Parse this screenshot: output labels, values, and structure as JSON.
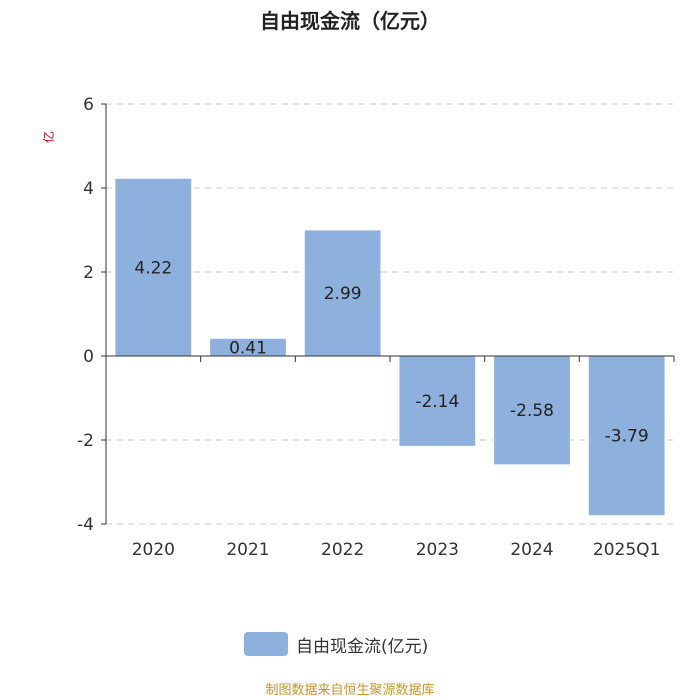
{
  "chart_data": {
    "type": "bar",
    "title": "自由现金流（亿元）",
    "unit_label": "亿",
    "categories": [
      "2020",
      "2021",
      "2022",
      "2023",
      "2024",
      "2025Q1"
    ],
    "series": [
      {
        "name": "自由现金流(亿元)",
        "values": [
          4.22,
          0.41,
          2.99,
          -2.14,
          -2.58,
          -3.79
        ]
      }
    ],
    "data_labels": [
      "4.22",
      "0.41",
      "2.99",
      "-2.14",
      "-2.58",
      "-3.79"
    ],
    "ylim": [
      -4,
      6
    ],
    "yticks": [
      6,
      4,
      2,
      0,
      -2,
      -4
    ],
    "grid": true,
    "legend_position": "bottom",
    "bar_color": "#8eb0dd"
  },
  "legend": {
    "label": "自由现金流(亿元)"
  },
  "source": "制图数据来自恒生聚源数据库"
}
